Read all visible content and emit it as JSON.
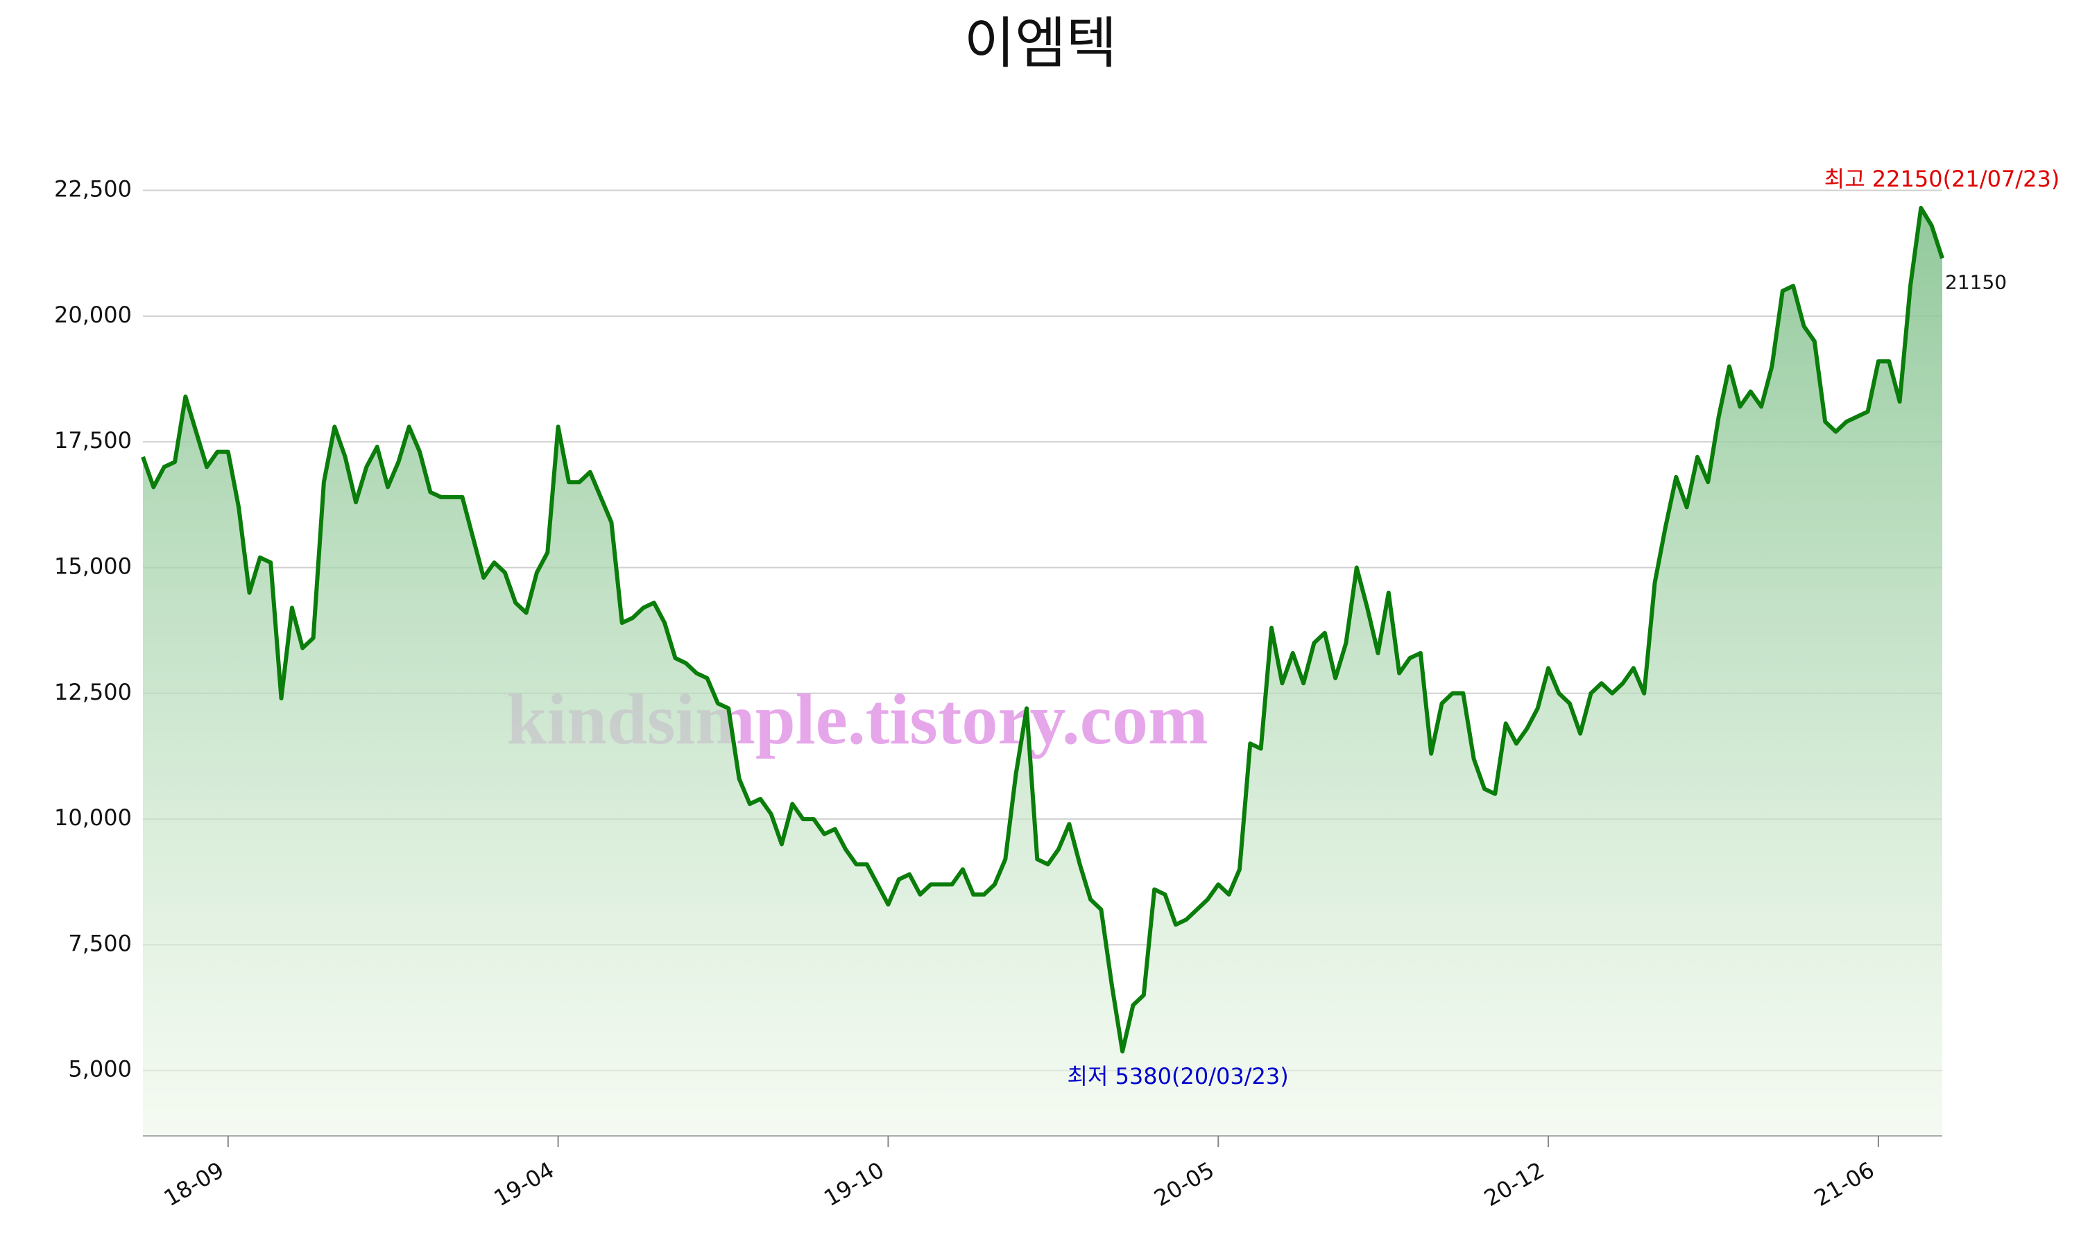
{
  "chart_data": {
    "type": "line",
    "title": "이엠텍",
    "watermark": "kindsimple.tistory.com",
    "annotations": {
      "max": "최고 22150(21/07/23)",
      "min": "최저 5380(20/03/23)"
    },
    "color": "#0a7d0a",
    "grid": true,
    "ylim": [
      3700,
      23100
    ],
    "yticks": [
      {
        "value": 5000,
        "label": "5,000"
      },
      {
        "value": 7500,
        "label": "7,500"
      },
      {
        "value": 10000,
        "label": "10,000"
      },
      {
        "value": 12500,
        "label": "12,500"
      },
      {
        "value": 15000,
        "label": "15,000"
      },
      {
        "value": 17500,
        "label": "17,500"
      },
      {
        "value": 20000,
        "label": "20,000"
      },
      {
        "value": 22500,
        "label": "22,500"
      }
    ],
    "categories": [
      null,
      null,
      null,
      null,
      null,
      null,
      null,
      null,
      "18-09",
      null,
      null,
      null,
      null,
      null,
      null,
      null,
      null,
      null,
      null,
      null,
      null,
      null,
      null,
      null,
      null,
      null,
      null,
      null,
      null,
      null,
      null,
      null,
      null,
      null,
      null,
      null,
      null,
      null,
      null,
      "19-04",
      null,
      null,
      null,
      null,
      null,
      null,
      null,
      null,
      null,
      null,
      null,
      null,
      null,
      null,
      null,
      null,
      null,
      null,
      null,
      null,
      null,
      null,
      null,
      null,
      null,
      null,
      null,
      null,
      null,
      null,
      "19-10",
      null,
      null,
      null,
      null,
      null,
      null,
      null,
      null,
      null,
      null,
      null,
      null,
      null,
      null,
      null,
      null,
      null,
      null,
      null,
      null,
      null,
      null,
      null,
      null,
      null,
      null,
      null,
      null,
      null,
      null,
      "20-05",
      null,
      null,
      null,
      null,
      null,
      null,
      null,
      null,
      null,
      null,
      null,
      null,
      null,
      null,
      null,
      null,
      null,
      null,
      null,
      null,
      null,
      null,
      null,
      null,
      null,
      null,
      null,
      null,
      null,
      null,
      "20-12",
      null,
      null,
      null,
      null,
      null,
      null,
      null,
      null,
      null,
      null,
      null,
      null,
      null,
      null,
      null,
      null,
      null,
      null,
      null,
      null,
      null,
      null,
      null,
      null,
      null,
      null,
      null,
      null,
      null,
      null,
      "21-06",
      null,
      null,
      null,
      null,
      null,
      null
    ],
    "values": [
      17200,
      16600,
      17000,
      17100,
      18400,
      17700,
      17000,
      17300,
      17300,
      16200,
      14500,
      15200,
      15100,
      12400,
      14200,
      13400,
      13600,
      16700,
      17800,
      17200,
      16300,
      17000,
      17400,
      16600,
      17100,
      17800,
      17300,
      16500,
      16400,
      16400,
      16400,
      15600,
      14800,
      15100,
      14900,
      14300,
      14100,
      14900,
      15300,
      17800,
      16700,
      16700,
      16900,
      16400,
      15900,
      13900,
      14000,
      14200,
      14300,
      13900,
      13200,
      13100,
      12900,
      12800,
      12300,
      12200,
      10800,
      10300,
      10400,
      10100,
      9500,
      10300,
      10000,
      10000,
      9700,
      9800,
      9400,
      9100,
      9100,
      8700,
      8300,
      8800,
      8900,
      8500,
      8700,
      8700,
      8700,
      9000,
      8500,
      8500,
      8700,
      9200,
      10900,
      12200,
      9200,
      9100,
      9400,
      9900,
      9100,
      8400,
      8200,
      6700,
      5380,
      6300,
      6500,
      8600,
      8500,
      7900,
      8000,
      8200,
      8400,
      8700,
      8500,
      9000,
      11500,
      11400,
      13800,
      12700,
      13300,
      12700,
      13500,
      13700,
      12800,
      13500,
      15000,
      14200,
      13300,
      14500,
      12900,
      13200,
      13300,
      11300,
      12300,
      12500,
      12500,
      11200,
      10600,
      10500,
      11900,
      11500,
      11800,
      12200,
      13000,
      12500,
      12300,
      11700,
      12500,
      12700,
      12500,
      12700,
      13000,
      12500,
      14700,
      15800,
      16800,
      16200,
      17200,
      16700,
      18000,
      19000,
      18200,
      18500,
      18200,
      19000,
      20500,
      20600,
      19800,
      19500,
      17900,
      17700,
      17900,
      18000,
      18100,
      19100,
      19100,
      18300,
      20600,
      22150,
      21800,
      21150
    ]
  }
}
